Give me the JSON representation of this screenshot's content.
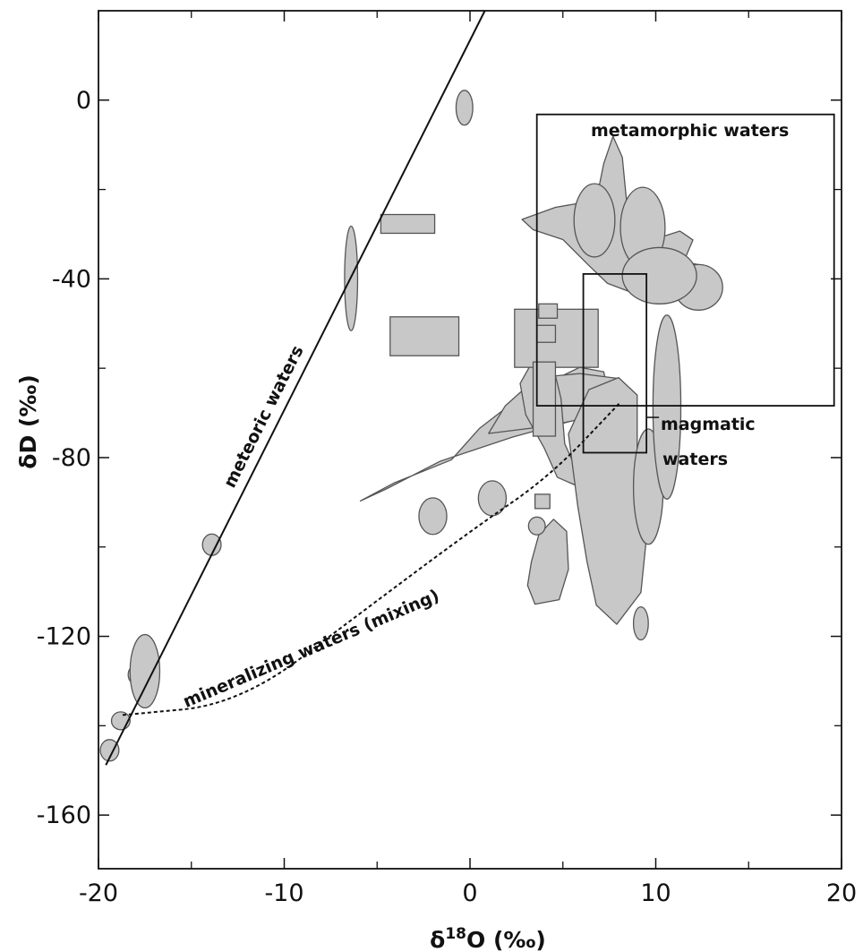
{
  "chart_data": {
    "type": "scatter",
    "xlabel_main": "δ",
    "xlabel_sup": "18",
    "xlabel_rest": "O (‰)",
    "ylabel": "δD (‰)",
    "xlim": [
      -20,
      20
    ],
    "ylim": [
      -172,
      20
    ],
    "x_ticks": [
      -20,
      -10,
      0,
      10,
      20
    ],
    "y_ticks": [
      0,
      -40,
      -80,
      -120,
      -160
    ],
    "x_tick_labels": [
      "-20",
      "-10",
      "0",
      "10",
      "20"
    ],
    "y_tick_labels": [
      "0",
      "-40",
      "-80",
      "-120",
      "-160"
    ],
    "grid": false,
    "fill_color": "#c8c8c8",
    "annotations": {
      "meteoric": "meteoric waters",
      "mixing": "mineralizing waters (mixing)",
      "metamorphic": "metamorphic waters",
      "magmatic_line1": "magmatic",
      "magmatic_line2": "waters"
    },
    "meteoric_line": {
      "x": [
        -19.6,
        0.8
      ],
      "y": [
        -148.8,
        20
      ]
    },
    "mixing_curve": [
      [
        -18.7,
        -137.6
      ],
      [
        -12.4,
        -135.2
      ],
      [
        -5.9,
        -114.8
      ],
      [
        0.1,
        -96.2
      ],
      [
        4.3,
        -84.2
      ],
      [
        8.1,
        -67.6
      ]
    ],
    "metamorphic_box": {
      "x": [
        3.6,
        19.6
      ],
      "y": [
        -68.4,
        -3.2
      ]
    },
    "magmatic_box": {
      "x": [
        6.1,
        9.5
      ],
      "y": [
        -78.9,
        -38.9
      ]
    },
    "rect_fields": [
      {
        "x": [
          -4.8,
          -1.9
        ],
        "y": [
          -29.8,
          -25.6
        ]
      },
      {
        "x": [
          -4.3,
          -0.6
        ],
        "y": [
          -57.2,
          -48.5
        ]
      },
      {
        "x": [
          2.4,
          6.9
        ],
        "y": [
          -59.8,
          -46.8
        ]
      },
      {
        "x": [
          3.7,
          4.7
        ],
        "y": [
          -48.8,
          -45.6
        ]
      },
      {
        "x": [
          3.6,
          4.6
        ],
        "y": [
          -54.2,
          -50.4
        ]
      },
      {
        "x": [
          3.4,
          4.6
        ],
        "y": [
          -75.2,
          -58.6
        ]
      },
      {
        "x": [
          3.5,
          4.3
        ],
        "y": [
          -91.4,
          -88.2
        ]
      }
    ],
    "ellipse_fields": [
      {
        "cx": -0.3,
        "cy": -1.7,
        "rx": 0.45,
        "ry": 3.9,
        "rot": 0
      },
      {
        "cx": -6.4,
        "cy": -39.9,
        "rx": 0.35,
        "ry": 11.7,
        "rot": 0
      },
      {
        "cx": -13.9,
        "cy": -99.5,
        "rx": 0.5,
        "ry": 2.4,
        "rot": 0
      },
      {
        "cx": -17.9,
        "cy": -128.6,
        "rx": 0.5,
        "ry": 2.3,
        "rot": 0
      },
      {
        "cx": -18.8,
        "cy": -138.9,
        "rx": 0.5,
        "ry": 2.0,
        "rot": 0
      },
      {
        "cx": -19.4,
        "cy": -145.5,
        "rx": 0.5,
        "ry": 2.4,
        "rot": 0
      },
      {
        "cx": -17.5,
        "cy": -127.8,
        "rx": 0.8,
        "ry": 8.2,
        "rot": 0
      },
      {
        "cx": -2.0,
        "cy": -93.1,
        "rx": 0.75,
        "ry": 4.1,
        "rot": 0
      },
      {
        "cx": 1.2,
        "cy": -89.1,
        "rx": 0.75,
        "ry": 3.9,
        "rot": 0
      },
      {
        "cx": 3.6,
        "cy": -95.3,
        "rx": 0.45,
        "ry": 2.0,
        "rot": 0
      },
      {
        "cx": 9.6,
        "cy": -86.5,
        "rx": 0.8,
        "ry": 12.9,
        "rot": 0
      },
      {
        "cx": 10.6,
        "cy": -68.7,
        "rx": 0.75,
        "ry": 20.6,
        "rot": 0
      },
      {
        "cx": 9.2,
        "cy": -117.1,
        "rx": 0.4,
        "ry": 3.7,
        "rot": 0
      },
      {
        "cx": 6.7,
        "cy": -26.9,
        "rx": 1.1,
        "ry": 8.2,
        "rot": 0
      },
      {
        "cx": 9.3,
        "cy": -28.5,
        "rx": 1.2,
        "ry": 9.0,
        "rot": 0
      },
      {
        "cx": 12.3,
        "cy": -41.9,
        "rx": 1.3,
        "ry": 5.1,
        "rot": 0
      },
      {
        "cx": 10.2,
        "cy": -39.3,
        "rx": 2.0,
        "ry": 6.3,
        "rot": 0
      }
    ],
    "polygon_fields": [
      [
        [
          -5.9,
          -89.7
        ],
        [
          -4.1,
          -85.7
        ],
        [
          -1.0,
          -80.5
        ],
        [
          0.5,
          -73.5
        ],
        [
          2.8,
          -66.1
        ],
        [
          5.9,
          -59.8
        ],
        [
          7.2,
          -60.8
        ],
        [
          7.5,
          -66.4
        ],
        [
          5.9,
          -71.3
        ],
        [
          2.3,
          -75.4
        ],
        [
          -1.6,
          -80.8
        ],
        [
          -4.5,
          -87.0
        ],
        [
          -5.9,
          -89.7
        ]
      ],
      [
        [
          1.0,
          -74.6
        ],
        [
          1.9,
          -68.4
        ],
        [
          3.6,
          -62.1
        ],
        [
          5.9,
          -61.2
        ],
        [
          8.0,
          -62.3
        ],
        [
          8.9,
          -65.8
        ],
        [
          7.6,
          -70.0
        ],
        [
          4.1,
          -73.0
        ],
        [
          1.0,
          -74.6
        ]
      ],
      [
        [
          2.7,
          -63.4
        ],
        [
          3.4,
          -58.2
        ],
        [
          4.4,
          -58.2
        ],
        [
          4.9,
          -66.8
        ],
        [
          5.1,
          -76.9
        ],
        [
          5.6,
          -81.5
        ],
        [
          5.8,
          -86.4
        ],
        [
          4.7,
          -84.4
        ],
        [
          4.0,
          -77.9
        ],
        [
          3.0,
          -70.4
        ],
        [
          2.7,
          -63.4
        ]
      ],
      [
        [
          5.3,
          -74.7
        ],
        [
          6.4,
          -64.8
        ],
        [
          8.0,
          -62.1
        ],
        [
          9.0,
          -66.0
        ],
        [
          9.0,
          -82.4
        ],
        [
          9.5,
          -97.9
        ],
        [
          9.2,
          -110.2
        ],
        [
          7.9,
          -117.3
        ],
        [
          6.8,
          -113.0
        ],
        [
          6.3,
          -103.3
        ],
        [
          5.8,
          -90.8
        ],
        [
          5.3,
          -74.7
        ]
      ],
      [
        [
          3.1,
          -108.6
        ],
        [
          3.3,
          -103.4
        ],
        [
          3.7,
          -97.3
        ],
        [
          4.5,
          -93.8
        ],
        [
          5.2,
          -96.5
        ],
        [
          5.3,
          -105.0
        ],
        [
          4.8,
          -111.8
        ],
        [
          3.5,
          -112.8
        ],
        [
          3.1,
          -108.6
        ]
      ],
      [
        [
          2.8,
          -26.7
        ],
        [
          4.6,
          -24.0
        ],
        [
          6.8,
          -22.4
        ],
        [
          7.2,
          -14.2
        ],
        [
          7.7,
          -8.1
        ],
        [
          8.2,
          -12.8
        ],
        [
          8.4,
          -21.4
        ],
        [
          8.6,
          -28.0
        ],
        [
          9.2,
          -32.1
        ],
        [
          11.3,
          -29.3
        ],
        [
          12.0,
          -31.3
        ],
        [
          11.5,
          -36.2
        ],
        [
          12.8,
          -37.2
        ],
        [
          13.4,
          -40.0
        ],
        [
          12.2,
          -42.1
        ],
        [
          9.0,
          -43.5
        ],
        [
          7.4,
          -41.0
        ],
        [
          6.4,
          -37.0
        ],
        [
          5.0,
          -31.2
        ],
        [
          3.4,
          -29.0
        ],
        [
          2.8,
          -26.7
        ]
      ]
    ]
  }
}
